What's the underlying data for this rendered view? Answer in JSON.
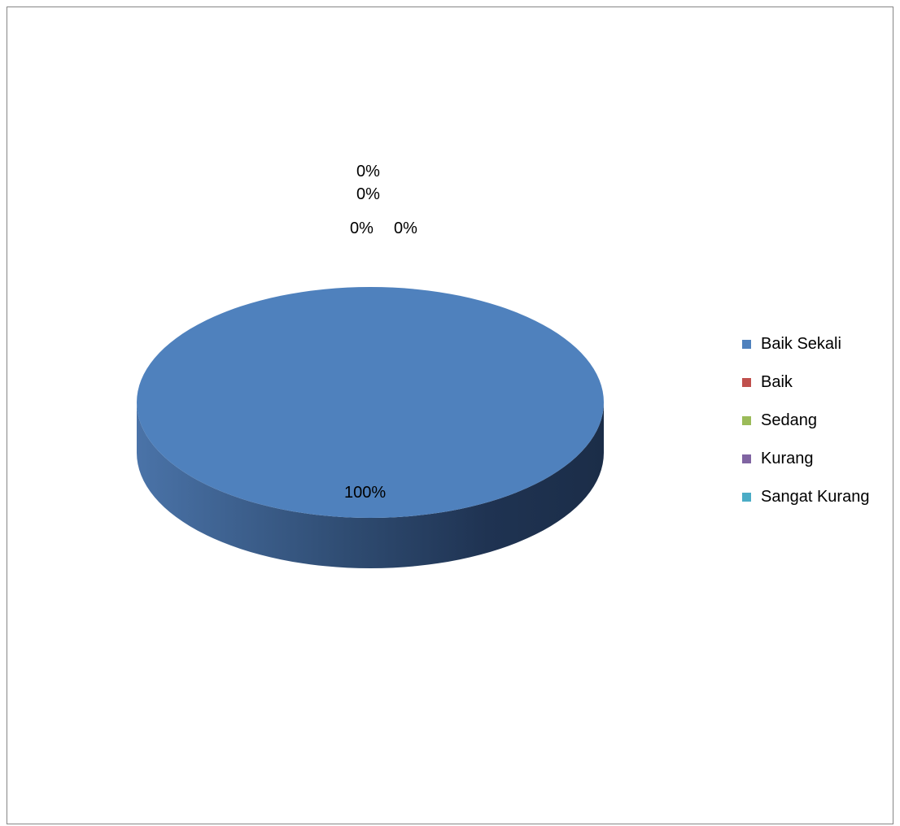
{
  "chart_data": {
    "type": "pie",
    "title": "",
    "categories": [
      "Baik Sekali",
      "Baik",
      "Sedang",
      "Kurang",
      "Sangat Kurang"
    ],
    "values": [
      100,
      0,
      0,
      0,
      0
    ],
    "data_labels": [
      "100%",
      "0%",
      "0%",
      "0%",
      "0%"
    ],
    "colors": [
      "#4F81BD",
      "#C0504D",
      "#9BBB59",
      "#8064A2",
      "#4BACC6"
    ],
    "style": "3d",
    "legend_position": "right"
  }
}
